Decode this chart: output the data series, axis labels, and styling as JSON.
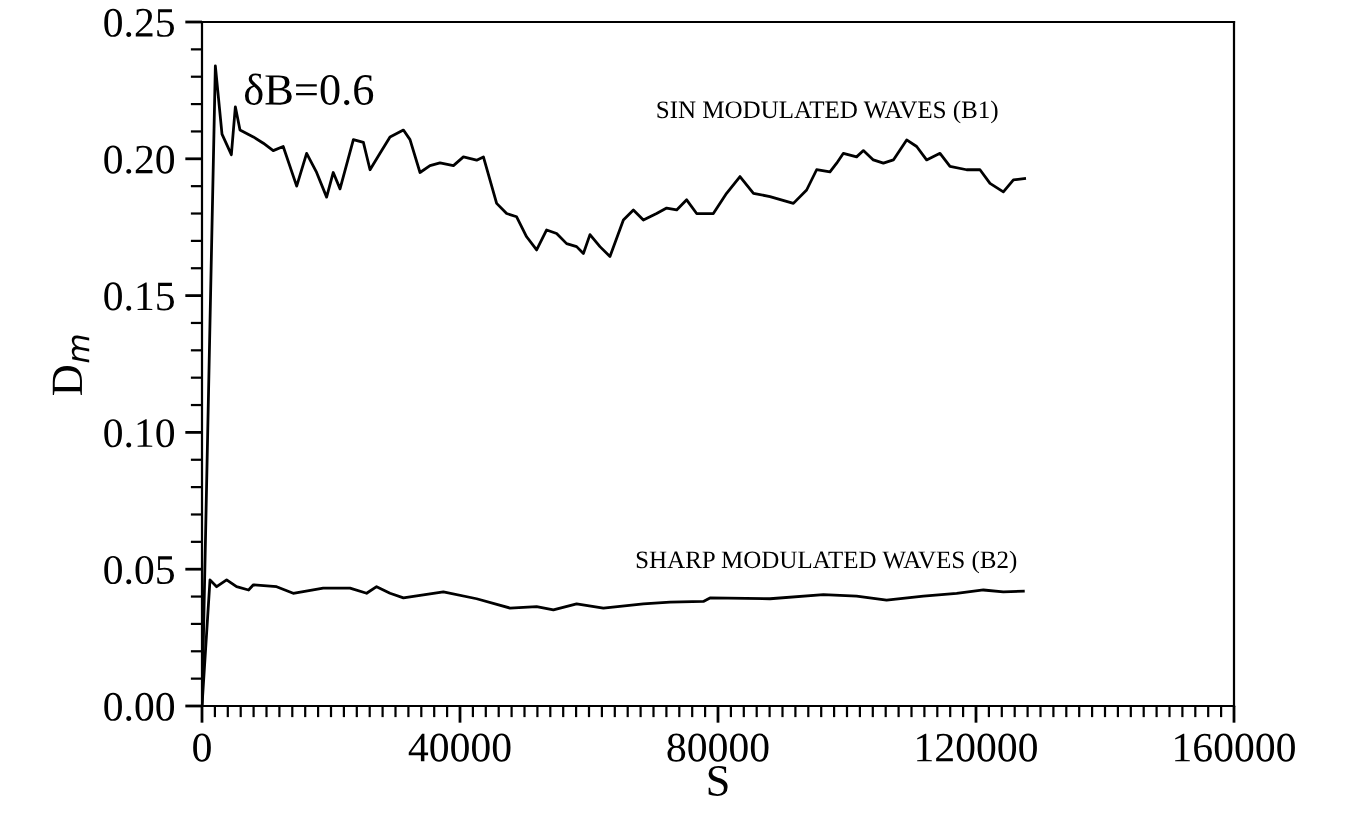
{
  "chart_data": {
    "type": "line",
    "xlabel": "S",
    "ylabel": "D$_{m}$",
    "xlim": [
      0,
      160000
    ],
    "ylim": [
      0,
      0.25
    ],
    "xticks": [
      0,
      40000,
      80000,
      120000,
      160000
    ],
    "yticks": [
      {
        "value": 0,
        "label": "0.00"
      },
      {
        "value": 0.05,
        "label": "0.05"
      },
      {
        "value": 0.1,
        "label": "0.10"
      },
      {
        "value": 0.15,
        "label": "0.15"
      },
      {
        "value": 0.2,
        "label": "0.20"
      },
      {
        "value": 0.25,
        "label": "0.25"
      }
    ],
    "grid": false,
    "legend": false,
    "marker": "none",
    "line_style": "solid",
    "annotations": [
      "δB=0.6"
    ],
    "series": [
      {
        "name": "SIN MODULATED WAVES (B1)",
        "color": "#000000",
        "x": [
          0,
          2070,
          3100,
          4550,
          5170,
          5890,
          7960,
          9510,
          11040,
          12590,
          14680,
          16220,
          17770,
          19320,
          20350,
          21400,
          23470,
          25020,
          26050,
          27600,
          29150,
          31230,
          32250,
          33800,
          35350,
          36900,
          38980,
          40530,
          42580,
          43630,
          45680,
          47230,
          48780,
          50330,
          51880,
          53430,
          54980,
          56530,
          58080,
          59130,
          60150,
          61700,
          63250,
          65330,
          66880,
          68430,
          70480,
          72040,
          73590,
          75140,
          76690,
          79280,
          81330,
          83410,
          85500,
          88060,
          91690,
          93740,
          95290,
          97360,
          98400,
          99440,
          101490,
          102540,
          104080,
          105640,
          107190,
          109250,
          110800,
          112340,
          114420,
          115970,
          118540,
          120620,
          122170,
          124240,
          125800,
          127540
        ],
        "values": [
          0.0,
          0.234,
          0.209,
          0.2015,
          0.219,
          0.2105,
          0.208,
          0.2057,
          0.203,
          0.2045,
          0.19,
          0.202,
          0.195,
          0.186,
          0.195,
          0.189,
          0.207,
          0.206,
          0.196,
          0.202,
          0.208,
          0.2105,
          0.207,
          0.195,
          0.1975,
          0.1985,
          0.1975,
          0.2007,
          0.1995,
          0.2007,
          0.1837,
          0.18,
          0.1788,
          0.1715,
          0.1667,
          0.174,
          0.1727,
          0.169,
          0.1679,
          0.1654,
          0.1723,
          0.1679,
          0.1643,
          0.1776,
          0.1813,
          0.1776,
          0.18,
          0.182,
          0.1813,
          0.185,
          0.18,
          0.18,
          0.1874,
          0.1935,
          0.1874,
          0.1862,
          0.1837,
          0.1886,
          0.196,
          0.1952,
          0.1984,
          0.202,
          0.2007,
          0.203,
          0.1996,
          0.1984,
          0.1996,
          0.2069,
          0.2045,
          0.1996,
          0.202,
          0.1972,
          0.196,
          0.196,
          0.191,
          0.1879,
          0.1923,
          0.1928
        ]
      },
      {
        "name": "SHARP MODULATED WAVES (B2)",
        "color": "#000000",
        "x": [
          0,
          1240,
          2270,
          3820,
          5360,
          7220,
          7970,
          11570,
          14140,
          18790,
          22950,
          25520,
          27070,
          29150,
          31230,
          37420,
          42580,
          47750,
          51880,
          54480,
          58080,
          62230,
          68430,
          72560,
          77730,
          78760,
          88060,
          96340,
          101490,
          106140,
          111850,
          117000,
          121150,
          124240,
          127340
        ],
        "values": [
          0.0,
          0.0461,
          0.0436,
          0.0461,
          0.0436,
          0.0424,
          0.0443,
          0.0436,
          0.0412,
          0.0431,
          0.0431,
          0.0412,
          0.0436,
          0.0412,
          0.0395,
          0.0417,
          0.0392,
          0.0358,
          0.0363,
          0.0351,
          0.0373,
          0.0358,
          0.0373,
          0.038,
          0.0382,
          0.0395,
          0.0392,
          0.0407,
          0.0402,
          0.0387,
          0.0402,
          0.0412,
          0.0424,
          0.0417,
          0.042
        ]
      }
    ]
  }
}
